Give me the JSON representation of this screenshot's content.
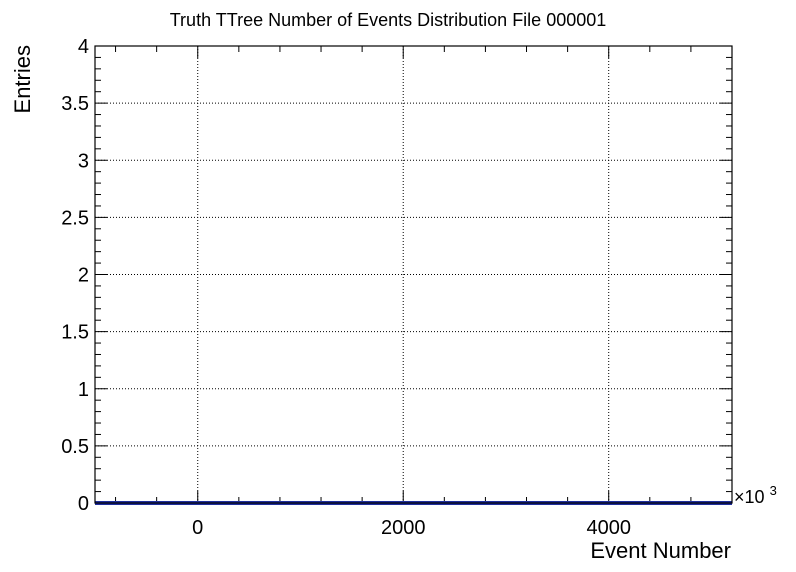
{
  "chart_data": {
    "type": "line",
    "title": "Truth TTree Number of Events Distribution File 000001",
    "xlabel": "Event Number",
    "ylabel": "Entries",
    "x_multiplier_label": "×10",
    "x_multiplier_exponent": "3",
    "xlim": [
      -1000,
      5200
    ],
    "ylim": [
      0,
      4
    ],
    "x_ticks": [
      0,
      2000,
      4000
    ],
    "x_tick_labels": [
      "0",
      "2000",
      "4000"
    ],
    "y_ticks": [
      0,
      0.5,
      1,
      1.5,
      2,
      2.5,
      3,
      3.5,
      4
    ],
    "y_tick_labels": [
      "0",
      "0.5",
      "1",
      "1.5",
      "2",
      "2.5",
      "3",
      "3.5",
      "4"
    ],
    "grid": true,
    "series": [
      {
        "x": [
          -1000,
          5200
        ],
        "values": [
          0,
          0
        ],
        "color": "#1f2e9e"
      }
    ]
  }
}
